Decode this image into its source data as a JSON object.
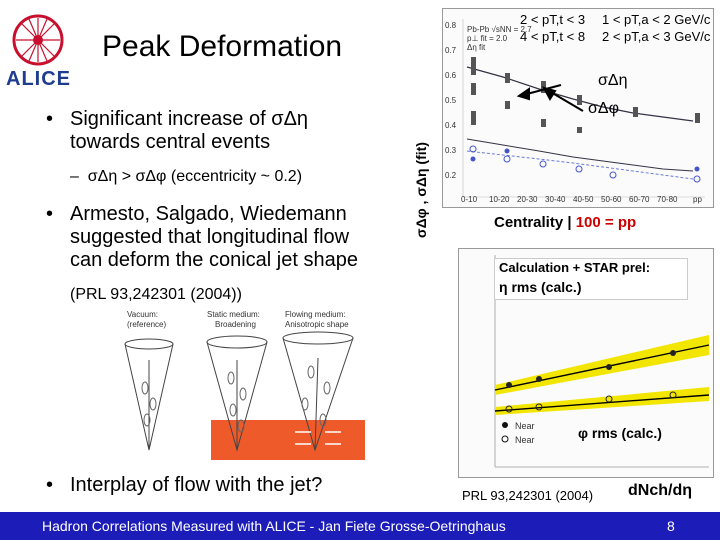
{
  "slide": {
    "title": "Peak Deformation",
    "logo_text": "ALICE",
    "page_number": "8",
    "footer": "Hadron Correlations Measured with ALICE - Jan Fiete Grosse-Oetringhaus"
  },
  "bullets": {
    "b1_line1": "Significant increase of σΔη",
    "b1_line2": "towards central events",
    "b1_sub": "σΔη > σΔφ (eccentricity ~ 0.2)",
    "b2_line1": "Armesto, Salgado, Wiedemann",
    "b2_line2": "suggested that longitudinal flow",
    "b2_line3": "can deform the conical jet shape",
    "b2_ref": "(PRL 93,242301 (2004))",
    "b3": "Interplay of flow with the jet?"
  },
  "top_plot": {
    "y_axis_label": "σΔφ , σΔη (fit)",
    "cuts_left_1": "2 < pT,t < 3",
    "cuts_left_2": "4 < pT,t < 8",
    "cuts_right_1": "1 < pT,a < 2 GeV/c",
    "cuts_right_2": "2 < pT,a < 3 GeV/c",
    "label_eta": "σΔη",
    "label_phi": "σΔφ",
    "x_caption": "Centrality | ",
    "x_caption_red": "100 = pp",
    "inset_line1": "Pb-Pb √sNN = 2.7",
    "inset_line2": "p⊥ fit = 2.0",
    "inset_line3": "Δη fit",
    "x_ticks": [
      "0-10",
      "10-20",
      "20-30",
      "30-40",
      "40-50",
      "50-60",
      "60-70",
      "70-80",
      "pp"
    ],
    "y_ticks": [
      "0.8",
      "0.7",
      "0.6",
      "0.5",
      "0.4",
      "0.3",
      "0.2"
    ]
  },
  "cartoon": {
    "panel1_line1": "Vacuum:",
    "panel1_line2": "(reference)",
    "panel2_line1": "Static medium:",
    "panel2_line2": "Broadening",
    "panel3_line1": "Flowing medium:",
    "panel3_line2": "Anisotropic shape"
  },
  "bottom_plot": {
    "calc_line1": "Calculation + STAR prel:",
    "calc_line2": "η rms (calc.)",
    "phi_label": "φ rms (calc.)",
    "legend_near1": "Near",
    "legend_near2": "Near",
    "ref": "PRL 93,242301 (2004)",
    "x_label": "dNch/dη"
  },
  "colors": {
    "footer_bg": "#1c1cb8",
    "accent_red": "#cc0000",
    "band_yellow": "#f2e600",
    "logo_red": "#c8102e",
    "logo_blue": "#1f3d8f"
  },
  "icons": [
    "alice-logo-icon",
    "arrow-icon",
    "bullet-icon"
  ]
}
